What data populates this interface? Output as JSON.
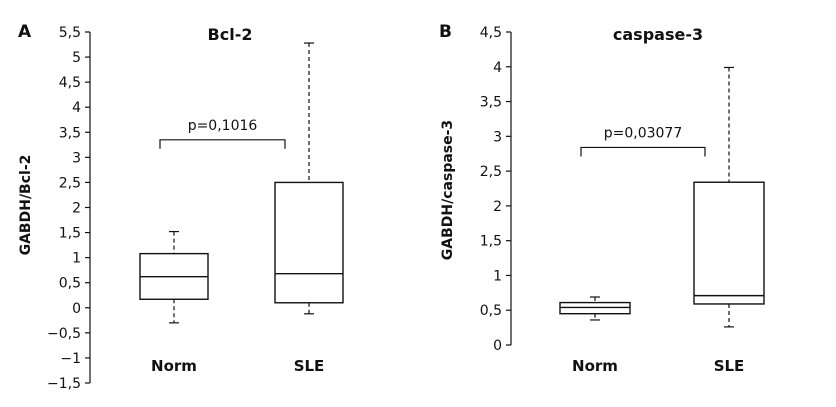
{
  "chart_data": [
    {
      "type": "box",
      "panel": "A",
      "title": "Bcl-2",
      "ylabel": "GABDH/Bcl-2",
      "xlabel": "",
      "ylim": [
        -1.5,
        5.5
      ],
      "yticks": [
        {
          "v": -1.5,
          "label": "−1,5"
        },
        {
          "v": -1.0,
          "label": "−1"
        },
        {
          "v": -0.5,
          "label": "−0,5"
        },
        {
          "v": 0,
          "label": "0"
        },
        {
          "v": 0.5,
          "label": "0,5"
        },
        {
          "v": 1,
          "label": "1"
        },
        {
          "v": 1.5,
          "label": "1,5"
        },
        {
          "v": 2,
          "label": "2"
        },
        {
          "v": 2.5,
          "label": "2,5"
        },
        {
          "v": 3,
          "label": "3"
        },
        {
          "v": 3.5,
          "label": "3,5"
        },
        {
          "v": 4,
          "label": "4"
        },
        {
          "v": 4.5,
          "label": "4,5"
        },
        {
          "v": 5,
          "label": "5"
        },
        {
          "v": 5.5,
          "label": "5,5"
        }
      ],
      "categories": [
        "Norm",
        "SLE"
      ],
      "boxes": [
        {
          "name": "Norm",
          "min": -0.3,
          "q1": 0.17,
          "median": 0.62,
          "q3": 1.08,
          "max": 1.52
        },
        {
          "name": "SLE",
          "min": -0.12,
          "q1": 0.1,
          "median": 0.68,
          "q3": 2.5,
          "max": 5.28
        }
      ],
      "annotation": {
        "text": "p=0,1016",
        "y": 3.35
      }
    },
    {
      "type": "box",
      "panel": "B",
      "title": "caspase-3",
      "ylabel": "GABDH/caspase-3",
      "xlabel": "",
      "ylim": [
        0,
        4.5
      ],
      "yticks": [
        {
          "v": 0,
          "label": "0"
        },
        {
          "v": 0.5,
          "label": "0,5"
        },
        {
          "v": 1,
          "label": "1"
        },
        {
          "v": 1.5,
          "label": "1,5"
        },
        {
          "v": 2,
          "label": "2"
        },
        {
          "v": 2.5,
          "label": "2,5"
        },
        {
          "v": 3,
          "label": "3"
        },
        {
          "v": 3.5,
          "label": "3,5"
        },
        {
          "v": 4,
          "label": "4"
        },
        {
          "v": 4.5,
          "label": "4,5"
        }
      ],
      "categories": [
        "Norm",
        "SLE"
      ],
      "boxes": [
        {
          "name": "Norm",
          "min": 0.36,
          "q1": 0.45,
          "median": 0.54,
          "q3": 0.61,
          "max": 0.69
        },
        {
          "name": "SLE",
          "min": 0.26,
          "q1": 0.59,
          "median": 0.71,
          "q3": 2.34,
          "max": 3.99
        }
      ],
      "annotation": {
        "text": "p=0,03077",
        "y": 2.84
      }
    }
  ]
}
